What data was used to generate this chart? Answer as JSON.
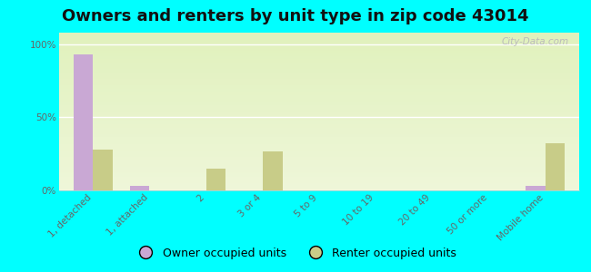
{
  "title": "Owners and renters by unit type in zip code 43014",
  "categories": [
    "1, detached",
    "1, attached",
    "2",
    "3 or 4",
    "5 to 9",
    "10 to 19",
    "20 to 49",
    "50 or more",
    "Mobile home"
  ],
  "owner_values": [
    93,
    3,
    0,
    0,
    0,
    0,
    0,
    0,
    3
  ],
  "renter_values": [
    28,
    0,
    15,
    27,
    0,
    0,
    0,
    0,
    32
  ],
  "owner_color": "#c9a8d4",
  "renter_color": "#c8cc88",
  "background_color": "#00ffff",
  "plot_bg_color": "#eef5d0",
  "ylabel_ticks": [
    "0%",
    "50%",
    "100%"
  ],
  "ytick_vals": [
    0,
    50,
    100
  ],
  "ylim": [
    0,
    108
  ],
  "bar_width": 0.35,
  "title_fontsize": 13,
  "tick_fontsize": 7.5,
  "legend_fontsize": 9,
  "watermark": "City-Data.com"
}
